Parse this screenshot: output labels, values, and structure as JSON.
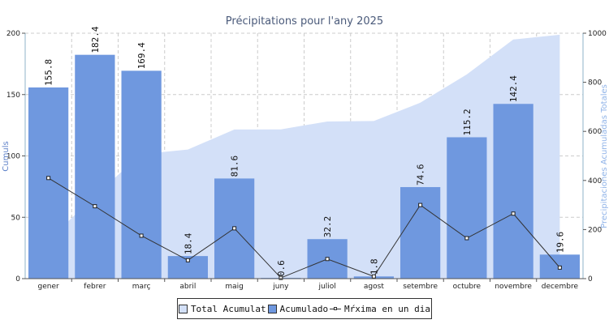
{
  "chart_data": {
    "type": "bar",
    "title": "Précipitations pour l'any 2025",
    "categories": [
      "gener",
      "febrer",
      "març",
      "abril",
      "maig",
      "juny",
      "juliol",
      "agost",
      "setembre",
      "octubre",
      "novembre",
      "decembre"
    ],
    "ylabel": "Cumuls",
    "y2label": "Precipitaciones Acumuladas Totales",
    "ylim": [
      0,
      200
    ],
    "y2lim": [
      0,
      1000
    ],
    "yticks": [
      "0",
      "50",
      "100",
      "150",
      "200"
    ],
    "y2ticks": [
      "0",
      "200",
      "400",
      "600",
      "800",
      "1000"
    ],
    "grid": true,
    "legend_position": "bottom",
    "series": [
      {
        "name": "Total Acumulat",
        "kind": "area",
        "axis": "right",
        "color": "#d3e0f8",
        "values": [
          155.8,
          338.2,
          507.6,
          526.0,
          607.6,
          608.2,
          640.4,
          642.2,
          716.8,
          832.0,
          974.4,
          994.0
        ]
      },
      {
        "name": "Acumulado",
        "kind": "bar",
        "axis": "left",
        "color": "#6f98df",
        "values": [
          155.8,
          182.4,
          169.4,
          18.4,
          81.6,
          0.6,
          32.2,
          1.8,
          74.6,
          115.2,
          142.4,
          19.6
        ]
      },
      {
        "name": "Mŕxima en un dia",
        "kind": "line",
        "axis": "left",
        "color": "#333333",
        "values": [
          82,
          59,
          35,
          15,
          41,
          0.6,
          16,
          1.8,
          60,
          33,
          53,
          9
        ]
      }
    ],
    "data_labels": [
      "155.8",
      "182.4",
      "169.4",
      "18.4",
      "81.6",
      "0.6",
      "32.2",
      "1.8",
      "74.6",
      "115.2",
      "142.4",
      "19.6"
    ]
  }
}
